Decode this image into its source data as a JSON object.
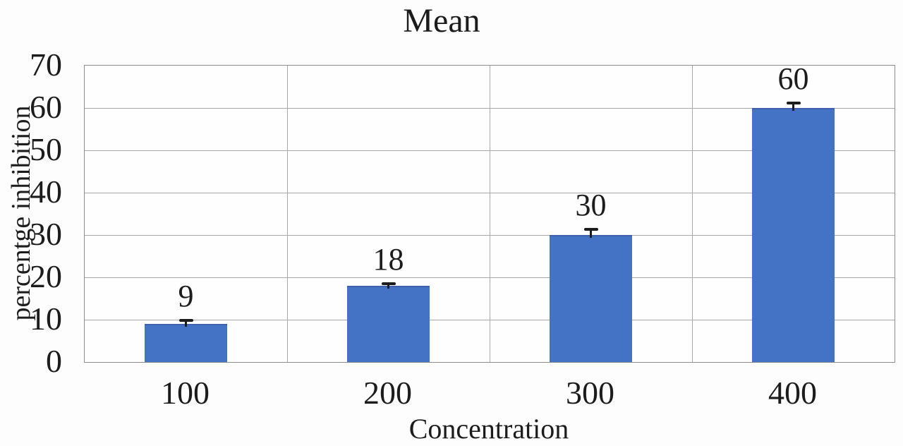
{
  "chart_data": {
    "type": "bar",
    "title": "Mean",
    "xlabel": "Concentration",
    "ylabel": "percentge inhibition",
    "categories": [
      "100",
      "200",
      "300",
      "400"
    ],
    "values": [
      9,
      18,
      30,
      60
    ],
    "error_bars": [
      1.2,
      0.8,
      1.6,
      1.5
    ],
    "value_labels": [
      "9",
      "18",
      "30",
      "60"
    ],
    "yticks": [
      0,
      10,
      20,
      30,
      40,
      50,
      60,
      70
    ],
    "ylim": [
      0,
      70
    ],
    "grid": "horizontal major + vertical category separators, outer border",
    "legend_position": "none",
    "bar_color": "#4472c4",
    "bar_edge_color": "#3a62ae",
    "grid_color": "#a8a8a8",
    "border_color": "#8c8c8c",
    "text_color": "#1c1c1c",
    "error_bar_color": "#1c1c1c"
  }
}
